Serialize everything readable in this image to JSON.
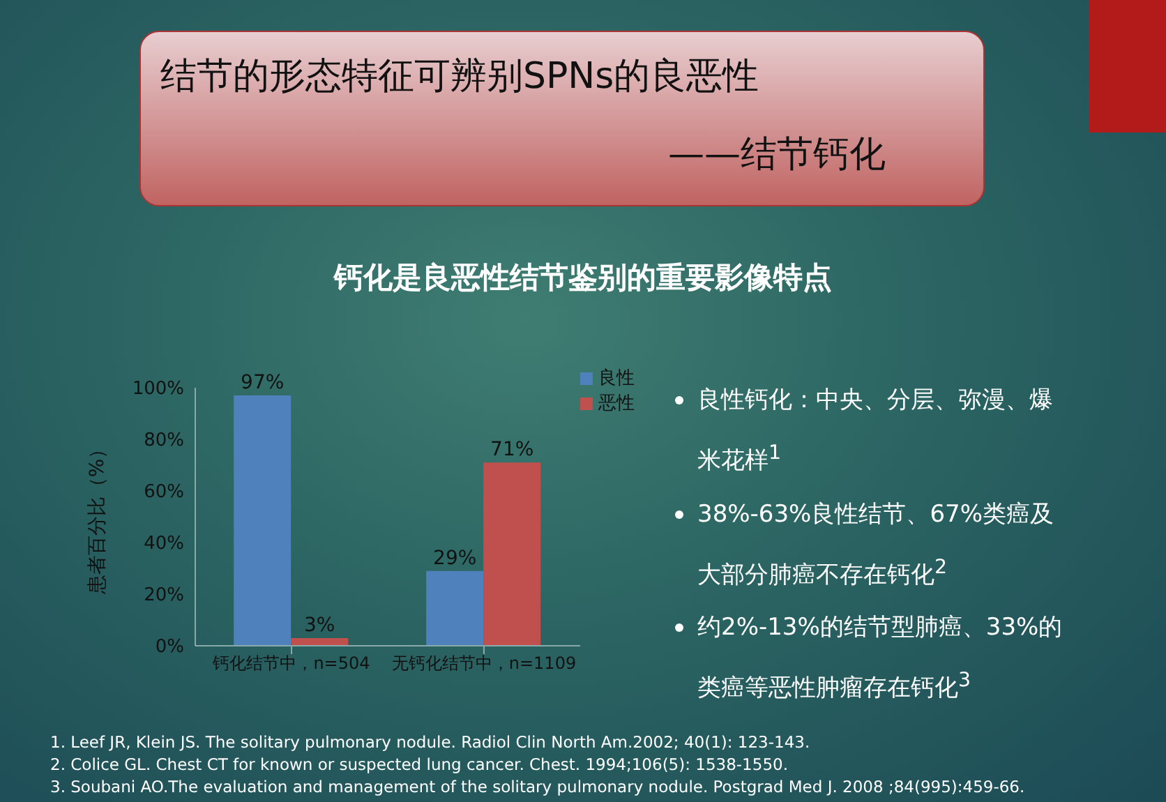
{
  "chart_data": {
    "type": "bar",
    "title": "结节的形态特征可辨别SPNs的良恶性",
    "subtitle": "——结节钙化",
    "annotations": [
      "钙化是良恶性结节鉴别的重要影像特点",
      "良性钙化：中央、分层、弥漫、爆米花样$^{1}$",
      "38%-63%良性结节、67%类癌及大部分肺癌不存在钙化$^{2}$",
      "约2%-13%的结节型肺癌、33%的类癌等恶性肿瘤存在钙化$^{3}$",
      "1.  Leef JR, Klein JS. The solitary pulmonary nodule. Radiol Clin North Am.2002; 40(1): 123-143.",
      "2.  Colice GL. Chest CT for known or suspected lung cancer. Chest. 1994;106(5): 1538-1550.",
      "3.  Soubani AO.The evaluation and management of the solitary pulmonary nodule. Postgrad Med J. 2008 ;84(995):459-66."
    ],
    "ylabel": "患者百分比（%）",
    "categories": [
      "钙化结节中，n=504",
      "无钙化结节中，n=1109"
    ],
    "series": [
      {
        "name": "良性",
        "color": "#4f81bd",
        "values": [
          97,
          29
        ],
        "value_labels": [
          "97%",
          "29%"
        ]
      },
      {
        "name": "恶性",
        "color": "#c0504d",
        "values": [
          3,
          71
        ],
        "value_labels": [
          "3%",
          "71%"
        ]
      }
    ],
    "ylim": [
      0,
      100
    ],
    "yticks": [
      {
        "value": 0,
        "label": "0%"
      },
      {
        "value": 20,
        "label": "20%"
      },
      {
        "value": 40,
        "label": "40%"
      },
      {
        "value": 60,
        "label": "60%"
      },
      {
        "value": 80,
        "label": "80%"
      },
      {
        "value": 100,
        "label": "100%"
      }
    ],
    "grid": false,
    "legend": "top right"
  }
}
